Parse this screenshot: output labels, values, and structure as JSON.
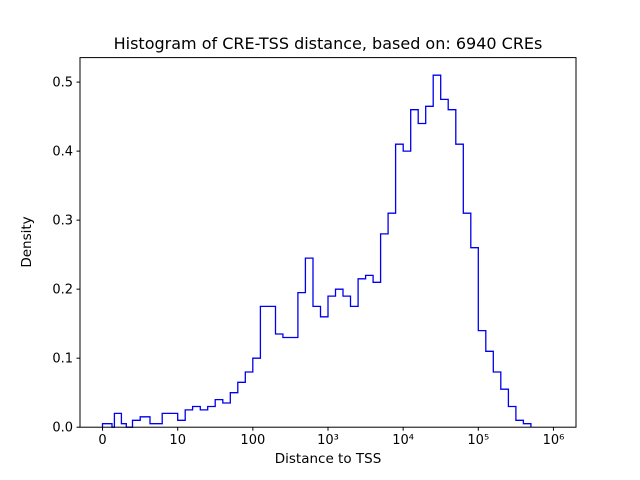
{
  "chart_data": {
    "type": "bar",
    "subtype": "histogram-step",
    "title": "Histogram of CRE-TSS distance, based on: 6940 CREs",
    "xlabel": "Distance to TSS",
    "ylabel": "Density",
    "x_scale": "symlog",
    "symlog_linthresh": 10,
    "x_units_range": [
      -0.3,
      6.3
    ],
    "ylim": [
      0,
      0.5355
    ],
    "grid": false,
    "legend": "none",
    "line_color": "#0000ee",
    "axis_color": "#000000",
    "x_ticks": [
      {
        "v": 0,
        "label": "0"
      },
      {
        "v": 10,
        "label": "10"
      },
      {
        "v": 100,
        "label": "100"
      },
      {
        "v": 1000,
        "label": "10³"
      },
      {
        "v": 10000,
        "label": "10⁴"
      },
      {
        "v": 100000,
        "label": "10⁵"
      },
      {
        "v": 1000000,
        "label": "10⁶"
      }
    ],
    "y_ticks": [
      {
        "v": 0.0,
        "label": "0.0"
      },
      {
        "v": 0.1,
        "label": "0.1"
      },
      {
        "v": 0.2,
        "label": "0.2"
      },
      {
        "v": 0.3,
        "label": "0.3"
      },
      {
        "v": 0.4,
        "label": "0.4"
      },
      {
        "v": 0.5,
        "label": "0.5"
      }
    ],
    "bin_edges": [
      0,
      1,
      1.26,
      1.58,
      2,
      2.51,
      3.16,
      3.98,
      5.01,
      6.31,
      7.94,
      10,
      12.6,
      15.8,
      20,
      25.1,
      31.6,
      39.8,
      50.1,
      63.1,
      79.4,
      100,
      126,
      158,
      200,
      251,
      316,
      398,
      501,
      631,
      794,
      1000,
      1259,
      1585,
      1995,
      2512,
      3162,
      3981,
      5012,
      6310,
      7943,
      10000,
      12589,
      15849,
      19953,
      25119,
      31623,
      39811,
      50119,
      63096,
      79433,
      100000,
      125893,
      158489,
      199526,
      251189,
      316228,
      398107,
      501187
    ],
    "densities": [
      0.005,
      0.005,
      0.0,
      0.02,
      0.02,
      0.005,
      0.0,
      0.01,
      0.015,
      0.005,
      0.02,
      0.01,
      0.025,
      0.03,
      0.025,
      0.03,
      0.04,
      0.035,
      0.05,
      0.065,
      0.08,
      0.1,
      0.175,
      0.175,
      0.135,
      0.13,
      0.13,
      0.195,
      0.245,
      0.175,
      0.16,
      0.19,
      0.2,
      0.19,
      0.175,
      0.215,
      0.22,
      0.21,
      0.28,
      0.31,
      0.41,
      0.4,
      0.46,
      0.44,
      0.465,
      0.51,
      0.475,
      0.46,
      0.41,
      0.31,
      0.26,
      0.14,
      0.11,
      0.08,
      0.055,
      0.03,
      0.01,
      0.005
    ]
  }
}
